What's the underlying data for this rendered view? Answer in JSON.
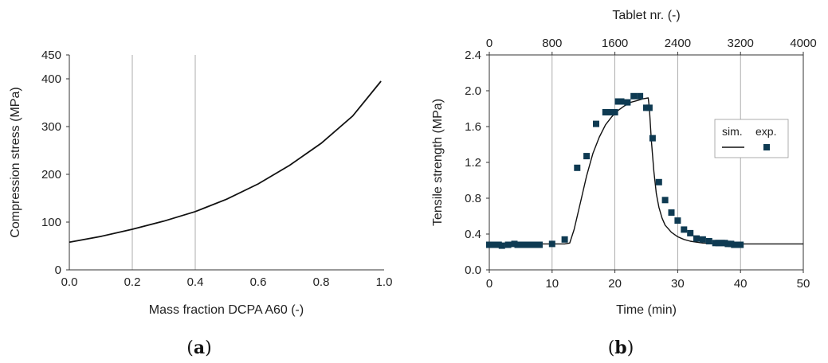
{
  "chart_data": [
    {
      "type": "line",
      "panel_label_open": "(",
      "panel_label_letter": "a",
      "panel_label_close": ")",
      "title": "",
      "xlabel": "Mass fraction DCPA A60 (-)",
      "ylabel": "Compression stress (MPa)",
      "xlim": [
        0,
        1
      ],
      "ylim": [
        0,
        450
      ],
      "xticks": [
        0.0,
        0.2,
        0.4,
        0.6,
        0.8,
        1.0
      ],
      "xtick_labels": [
        "0.0",
        "0.2",
        "0.4",
        "0.6",
        "0.8",
        "1.0"
      ],
      "yticks": [
        0,
        100,
        200,
        300,
        400,
        450
      ],
      "ytick_labels": [
        "0",
        "100",
        "200",
        "300",
        "400",
        "450"
      ],
      "grid": "vertical",
      "series": [
        {
          "name": "compression stress",
          "x": [
            0.0,
            0.1,
            0.2,
            0.3,
            0.4,
            0.5,
            0.6,
            0.7,
            0.8,
            0.9,
            0.99
          ],
          "y": [
            58,
            70,
            85,
            102,
            122,
            148,
            180,
            219,
            265,
            322,
            395
          ]
        }
      ]
    },
    {
      "type": "line",
      "panel_label_open": "(",
      "panel_label_letter": "b",
      "panel_label_close": ")",
      "title": "",
      "xlabel": "Time (min)",
      "x2label": "Tablet nr. (-)",
      "ylabel": "Tensile strength (MPa)",
      "xlim": [
        0,
        50
      ],
      "x2lim": [
        0,
        4000
      ],
      "ylim": [
        0,
        2.4
      ],
      "xticks": [
        0,
        10,
        20,
        30,
        40,
        50
      ],
      "xtick_labels": [
        "0",
        "10",
        "20",
        "30",
        "40",
        "50"
      ],
      "x2ticks": [
        0,
        800,
        1600,
        2400,
        3200,
        4000
      ],
      "x2tick_labels": [
        "0",
        "800",
        "1600",
        "2400",
        "3200",
        "4000"
      ],
      "yticks": [
        0,
        0.4,
        0.8,
        1.2,
        1.6,
        2.0,
        2.4
      ],
      "ytick_labels": [
        "0.0",
        "0.4",
        "0.8",
        "1.2",
        "1.6",
        "2.0",
        "2.4"
      ],
      "grid": "vertical",
      "legend": {
        "position": "right",
        "sim_label": "sim.",
        "exp_label": "exp."
      },
      "series": [
        {
          "name": "sim.",
          "style": "line",
          "x": [
            0,
            12,
            12.8,
            13.5,
            14.5,
            15.5,
            16.5,
            17.5,
            18.5,
            19.5,
            20.5,
            21.5,
            22.5,
            23.5,
            24.5,
            25.3,
            25.5,
            25.8,
            26.2,
            26.6,
            27.0,
            27.5,
            28,
            29,
            30,
            31,
            32,
            34,
            36,
            40,
            50
          ],
          "y": [
            0.29,
            0.29,
            0.3,
            0.45,
            0.75,
            1.05,
            1.3,
            1.48,
            1.62,
            1.71,
            1.78,
            1.83,
            1.87,
            1.89,
            1.91,
            1.92,
            1.8,
            1.45,
            1.1,
            0.85,
            0.7,
            0.58,
            0.5,
            0.42,
            0.37,
            0.34,
            0.32,
            0.3,
            0.295,
            0.29,
            0.29
          ]
        },
        {
          "name": "exp.",
          "style": "marker",
          "x": [
            0,
            0.5,
            1,
            1.5,
            2,
            3,
            4,
            4.5,
            5,
            5.5,
            6,
            6.5,
            7,
            7.5,
            8,
            10,
            12,
            14,
            15.5,
            17,
            18.5,
            19,
            19.5,
            20,
            20.5,
            21,
            22,
            23,
            24,
            25,
            25.5,
            26,
            27,
            28,
            29,
            30,
            31,
            32,
            33,
            34,
            35,
            36,
            36.5,
            37,
            37.5,
            38,
            38.5,
            39,
            39.5,
            40
          ],
          "y": [
            0.28,
            0.28,
            0.28,
            0.28,
            0.27,
            0.28,
            0.29,
            0.28,
            0.28,
            0.28,
            0.28,
            0.28,
            0.28,
            0.28,
            0.28,
            0.29,
            0.34,
            1.14,
            1.27,
            1.63,
            1.76,
            1.76,
            1.76,
            1.76,
            1.88,
            1.88,
            1.87,
            1.94,
            1.94,
            1.81,
            1.81,
            1.47,
            0.98,
            0.78,
            0.64,
            0.55,
            0.45,
            0.41,
            0.35,
            0.34,
            0.32,
            0.3,
            0.3,
            0.3,
            0.3,
            0.29,
            0.29,
            0.28,
            0.28,
            0.28
          ]
        }
      ]
    }
  ]
}
